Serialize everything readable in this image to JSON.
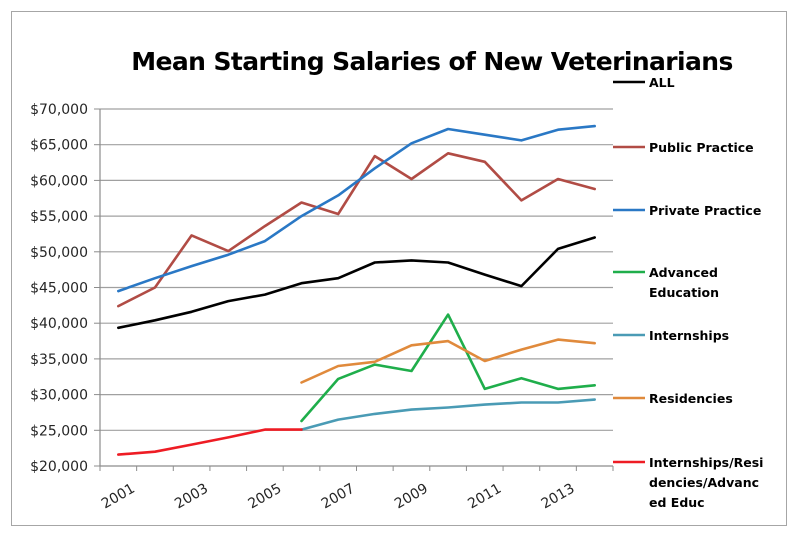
{
  "chart_data": {
    "type": "line",
    "title": "Mean Starting Salaries of New Veterinarians",
    "xlabel": "",
    "ylabel": "",
    "x": [
      "2001",
      "2002",
      "2003",
      "2004",
      "2005",
      "2006",
      "2007",
      "2008",
      "2009",
      "2010",
      "2011",
      "2012",
      "2013",
      "2014"
    ],
    "x_tick_labels": [
      "2001",
      "2003",
      "2005",
      "2007",
      "2009",
      "2011",
      "2013"
    ],
    "ylim": [
      20000,
      70000
    ],
    "y_ticks": [
      20000,
      25000,
      30000,
      35000,
      40000,
      45000,
      50000,
      55000,
      60000,
      65000,
      70000
    ],
    "y_tick_labels": [
      "$20,000",
      "$25,000",
      "$30,000",
      "$35,000",
      "$40,000",
      "$45,000",
      "$50,000",
      "$55,000",
      "$60,000",
      "$65,000",
      "$70,000"
    ],
    "grid": true,
    "legend_position": "right",
    "series": [
      {
        "name": "ALL",
        "color": "#000000",
        "values": [
          39350,
          40400,
          41600,
          43100,
          44000,
          45600,
          46300,
          48500,
          48800,
          48500,
          46800,
          45200,
          50400,
          52000
        ]
      },
      {
        "name": "Public Practice",
        "color": "#b14c45",
        "values": [
          42400,
          45000,
          52300,
          50100,
          53600,
          56900,
          55300,
          63400,
          60200,
          63800,
          62600,
          57200,
          60200,
          58800
        ]
      },
      {
        "name": "Private Practice",
        "color": "#2a78c5",
        "values": [
          44500,
          46300,
          48000,
          49600,
          51500,
          55000,
          57900,
          61700,
          65200,
          67200,
          66400,
          65600,
          67100,
          67600
        ]
      },
      {
        "name": "Advanced Education",
        "color": "#1fae4b",
        "values": [
          null,
          null,
          null,
          null,
          null,
          26300,
          32200,
          34200,
          33300,
          41200,
          30800,
          32300,
          30800,
          31300
        ]
      },
      {
        "name": "Internships",
        "color": "#4a9bb5",
        "values": [
          null,
          null,
          null,
          null,
          null,
          25100,
          26500,
          27300,
          27900,
          28200,
          28600,
          28900,
          28900,
          29300
        ]
      },
      {
        "name": "Residencies",
        "color": "#e08a3c",
        "values": [
          null,
          null,
          null,
          null,
          null,
          31700,
          34000,
          34600,
          36900,
          37500,
          34700,
          36300,
          37700,
          37200
        ]
      },
      {
        "name": "Internships/Residencies/Advanced Educ",
        "color": "#ee1c24",
        "legend_lines": [
          "Internships/Resi",
          "dencies/Advanc",
          "ed Educ"
        ],
        "values": [
          21600,
          22000,
          23000,
          24000,
          25100,
          25100,
          null,
          null,
          null,
          null,
          null,
          null,
          null,
          null
        ]
      }
    ]
  }
}
